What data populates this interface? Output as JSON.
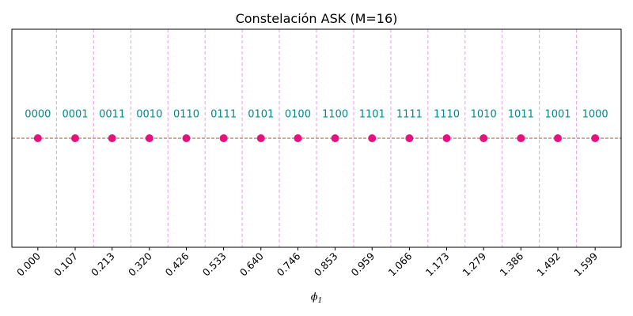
{
  "chart_data": {
    "type": "scatter",
    "title": "Constelación ASK (M=16)",
    "xlabel_base": "ϕ",
    "xlabel_sub": "1",
    "ylabel": "",
    "points": [
      {
        "x": 0.0,
        "y": 0,
        "label": "0000"
      },
      {
        "x": 0.107,
        "y": 0,
        "label": "0001"
      },
      {
        "x": 0.213,
        "y": 0,
        "label": "0011"
      },
      {
        "x": 0.32,
        "y": 0,
        "label": "0010"
      },
      {
        "x": 0.426,
        "y": 0,
        "label": "0110"
      },
      {
        "x": 0.533,
        "y": 0,
        "label": "0111"
      },
      {
        "x": 0.64,
        "y": 0,
        "label": "0101"
      },
      {
        "x": 0.746,
        "y": 0,
        "label": "0100"
      },
      {
        "x": 0.853,
        "y": 0,
        "label": "1100"
      },
      {
        "x": 0.959,
        "y": 0,
        "label": "1101"
      },
      {
        "x": 1.066,
        "y": 0,
        "label": "1111"
      },
      {
        "x": 1.173,
        "y": 0,
        "label": "1110"
      },
      {
        "x": 1.279,
        "y": 0,
        "label": "1010"
      },
      {
        "x": 1.386,
        "y": 0,
        "label": "1011"
      },
      {
        "x": 1.492,
        "y": 0,
        "label": "1001"
      },
      {
        "x": 1.599,
        "y": 0,
        "label": "1000"
      }
    ],
    "xticks": [
      "0.000",
      "0.107",
      "0.213",
      "0.320",
      "0.426",
      "0.533",
      "0.640",
      "0.746",
      "0.853",
      "0.959",
      "1.066",
      "1.173",
      "1.279",
      "1.386",
      "1.492",
      "1.599"
    ],
    "decision_boundaries": [
      0.0533,
      0.1599,
      0.2665,
      0.3731,
      0.4797,
      0.5863,
      0.6929,
      0.7995,
      0.9061,
      1.0127,
      1.1193,
      1.2259,
      1.3325,
      1.4391,
      1.5457
    ],
    "xlim": [
      -0.0746,
      1.6736
    ],
    "ylim": [
      -1,
      1
    ],
    "label_y": 0.22,
    "grid": false,
    "legend": "none",
    "colors": {
      "points": "#e5127e",
      "labels": "#008b8b",
      "boundaries": "#e58ee5",
      "baseline": "#a0522d"
    }
  }
}
